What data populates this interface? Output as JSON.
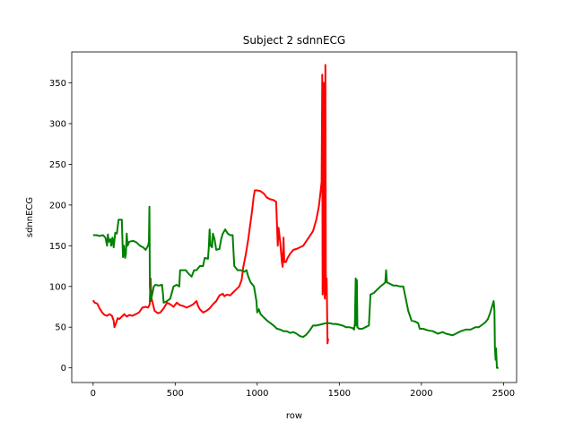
{
  "chart_data": {
    "type": "line",
    "title": "Subject 2 sdnnECG",
    "xlabel": "row",
    "ylabel": "sdnnECG",
    "xlim": [
      -130,
      2580
    ],
    "ylim": [
      -18,
      388
    ],
    "xticks": [
      0,
      500,
      1000,
      1500,
      2000,
      2500
    ],
    "yticks": [
      0,
      50,
      100,
      150,
      200,
      250,
      300,
      350
    ],
    "grid": false,
    "legend": "none",
    "series": [
      {
        "color": "#ff0000",
        "points": [
          [
            0,
            83
          ],
          [
            10,
            80
          ],
          [
            25,
            79
          ],
          [
            40,
            73
          ],
          [
            55,
            68
          ],
          [
            70,
            65
          ],
          [
            85,
            64
          ],
          [
            100,
            66
          ],
          [
            115,
            64
          ],
          [
            125,
            58
          ],
          [
            130,
            50
          ],
          [
            140,
            55
          ],
          [
            150,
            61
          ],
          [
            160,
            60
          ],
          [
            175,
            63
          ],
          [
            190,
            66
          ],
          [
            205,
            63
          ],
          [
            220,
            65
          ],
          [
            240,
            64
          ],
          [
            260,
            66
          ],
          [
            280,
            68
          ],
          [
            300,
            74
          ],
          [
            320,
            75
          ],
          [
            335,
            74
          ],
          [
            345,
            78
          ],
          [
            350,
            110
          ],
          [
            355,
            86
          ],
          [
            365,
            78
          ],
          [
            375,
            70
          ],
          [
            395,
            67
          ],
          [
            410,
            68
          ],
          [
            430,
            73
          ],
          [
            450,
            80
          ],
          [
            470,
            78
          ],
          [
            490,
            75
          ],
          [
            510,
            80
          ],
          [
            530,
            77
          ],
          [
            550,
            76
          ],
          [
            570,
            74
          ],
          [
            590,
            76
          ],
          [
            610,
            78
          ],
          [
            630,
            82
          ],
          [
            640,
            76
          ],
          [
            650,
            72
          ],
          [
            670,
            68
          ],
          [
            690,
            70
          ],
          [
            710,
            73
          ],
          [
            730,
            78
          ],
          [
            750,
            82
          ],
          [
            770,
            89
          ],
          [
            790,
            91
          ],
          [
            800,
            88
          ],
          [
            815,
            90
          ],
          [
            835,
            89
          ],
          [
            850,
            92
          ],
          [
            870,
            96
          ],
          [
            890,
            100
          ],
          [
            905,
            108
          ],
          [
            915,
            124
          ],
          [
            930,
            139
          ],
          [
            945,
            158
          ],
          [
            960,
            180
          ],
          [
            970,
            195
          ],
          [
            978,
            210
          ],
          [
            985,
            218
          ],
          [
            1000,
            218
          ],
          [
            1020,
            217
          ],
          [
            1040,
            214
          ],
          [
            1060,
            209
          ],
          [
            1080,
            207
          ],
          [
            1100,
            206
          ],
          [
            1115,
            204
          ],
          [
            1125,
            150
          ],
          [
            1130,
            172
          ],
          [
            1140,
            155
          ],
          [
            1150,
            130
          ],
          [
            1155,
            124
          ],
          [
            1160,
            160
          ],
          [
            1165,
            130
          ],
          [
            1175,
            130
          ],
          [
            1185,
            135
          ],
          [
            1200,
            140
          ],
          [
            1220,
            145
          ],
          [
            1240,
            146
          ],
          [
            1260,
            148
          ],
          [
            1280,
            150
          ],
          [
            1300,
            156
          ],
          [
            1320,
            162
          ],
          [
            1340,
            168
          ],
          [
            1360,
            182
          ],
          [
            1375,
            198
          ],
          [
            1385,
            215
          ],
          [
            1392,
            228
          ],
          [
            1396,
            360
          ],
          [
            1398,
            90
          ],
          [
            1402,
            100
          ],
          [
            1405,
            350
          ],
          [
            1408,
            110
          ],
          [
            1412,
            85
          ],
          [
            1415,
            372
          ],
          [
            1418,
            100
          ],
          [
            1420,
            90
          ],
          [
            1423,
            110
          ],
          [
            1425,
            80
          ],
          [
            1428,
            30
          ],
          [
            1432,
            36
          ]
        ]
      },
      {
        "color": "#008000",
        "points": [
          [
            0,
            163
          ],
          [
            20,
            163
          ],
          [
            40,
            162
          ],
          [
            60,
            163
          ],
          [
            75,
            160
          ],
          [
            85,
            150
          ],
          [
            90,
            164
          ],
          [
            95,
            155
          ],
          [
            105,
            158
          ],
          [
            110,
            150
          ],
          [
            118,
            160
          ],
          [
            125,
            148
          ],
          [
            135,
            166
          ],
          [
            145,
            165
          ],
          [
            155,
            182
          ],
          [
            175,
            182
          ],
          [
            182,
            136
          ],
          [
            188,
            150
          ],
          [
            195,
            135
          ],
          [
            200,
            140
          ],
          [
            205,
            165
          ],
          [
            210,
            150
          ],
          [
            220,
            155
          ],
          [
            245,
            156
          ],
          [
            265,
            154
          ],
          [
            285,
            150
          ],
          [
            305,
            148
          ],
          [
            320,
            145
          ],
          [
            335,
            150
          ],
          [
            340,
            155
          ],
          [
            343,
            198
          ],
          [
            346,
            100
          ],
          [
            352,
            82
          ],
          [
            370,
            100
          ],
          [
            380,
            102
          ],
          [
            400,
            101
          ],
          [
            420,
            102
          ],
          [
            425,
            92
          ],
          [
            430,
            80
          ],
          [
            450,
            82
          ],
          [
            470,
            85
          ],
          [
            490,
            100
          ],
          [
            510,
            102
          ],
          [
            525,
            100
          ],
          [
            530,
            120
          ],
          [
            545,
            120
          ],
          [
            565,
            120
          ],
          [
            580,
            116
          ],
          [
            600,
            112
          ],
          [
            615,
            120
          ],
          [
            630,
            120
          ],
          [
            650,
            125
          ],
          [
            670,
            125
          ],
          [
            680,
            135
          ],
          [
            700,
            134
          ],
          [
            705,
            148
          ],
          [
            710,
            170
          ],
          [
            715,
            150
          ],
          [
            725,
            148
          ],
          [
            730,
            165
          ],
          [
            740,
            158
          ],
          [
            750,
            145
          ],
          [
            770,
            146
          ],
          [
            780,
            158
          ],
          [
            790,
            165
          ],
          [
            805,
            170
          ],
          [
            820,
            165
          ],
          [
            835,
            163
          ],
          [
            850,
            163
          ],
          [
            860,
            125
          ],
          [
            880,
            120
          ],
          [
            900,
            120
          ],
          [
            920,
            118
          ],
          [
            935,
            120
          ],
          [
            945,
            112
          ],
          [
            960,
            105
          ],
          [
            980,
            100
          ],
          [
            995,
            82
          ],
          [
            1000,
            68
          ],
          [
            1010,
            72
          ],
          [
            1020,
            66
          ],
          [
            1040,
            62
          ],
          [
            1060,
            58
          ],
          [
            1080,
            55
          ],
          [
            1100,
            52
          ],
          [
            1120,
            48
          ],
          [
            1140,
            47
          ],
          [
            1160,
            45
          ],
          [
            1180,
            45
          ],
          [
            1200,
            43
          ],
          [
            1220,
            44
          ],
          [
            1240,
            42
          ],
          [
            1260,
            39
          ],
          [
            1280,
            38
          ],
          [
            1300,
            41
          ],
          [
            1320,
            46
          ],
          [
            1340,
            52
          ],
          [
            1360,
            52
          ],
          [
            1380,
            53
          ],
          [
            1400,
            54
          ],
          [
            1420,
            55
          ],
          [
            1440,
            55
          ],
          [
            1460,
            54
          ],
          [
            1480,
            54
          ],
          [
            1500,
            53
          ],
          [
            1520,
            52
          ],
          [
            1540,
            50
          ],
          [
            1560,
            50
          ],
          [
            1580,
            49
          ],
          [
            1590,
            47
          ],
          [
            1595,
            55
          ],
          [
            1600,
            110
          ],
          [
            1603,
            52
          ],
          [
            1607,
            108
          ],
          [
            1610,
            50
          ],
          [
            1620,
            48
          ],
          [
            1640,
            48
          ],
          [
            1660,
            50
          ],
          [
            1680,
            52
          ],
          [
            1690,
            90
          ],
          [
            1710,
            92
          ],
          [
            1730,
            96
          ],
          [
            1750,
            100
          ],
          [
            1770,
            103
          ],
          [
            1780,
            105
          ],
          [
            1785,
            120
          ],
          [
            1790,
            105
          ],
          [
            1810,
            103
          ],
          [
            1830,
            101
          ],
          [
            1850,
            101
          ],
          [
            1870,
            100
          ],
          [
            1890,
            100
          ],
          [
            1900,
            90
          ],
          [
            1920,
            70
          ],
          [
            1940,
            58
          ],
          [
            1960,
            57
          ],
          [
            1980,
            55
          ],
          [
            1990,
            48
          ],
          [
            2010,
            48
          ],
          [
            2040,
            46
          ],
          [
            2070,
            45
          ],
          [
            2100,
            42
          ],
          [
            2130,
            44
          ],
          [
            2150,
            42
          ],
          [
            2170,
            41
          ],
          [
            2190,
            40
          ],
          [
            2210,
            42
          ],
          [
            2240,
            45
          ],
          [
            2270,
            47
          ],
          [
            2300,
            47
          ],
          [
            2330,
            50
          ],
          [
            2350,
            50
          ],
          [
            2370,
            53
          ],
          [
            2390,
            56
          ],
          [
            2405,
            60
          ],
          [
            2420,
            68
          ],
          [
            2430,
            75
          ],
          [
            2440,
            82
          ],
          [
            2445,
            70
          ],
          [
            2448,
            25
          ],
          [
            2452,
            10
          ],
          [
            2455,
            24
          ],
          [
            2460,
            0
          ],
          [
            2470,
            0
          ]
        ]
      }
    ]
  }
}
